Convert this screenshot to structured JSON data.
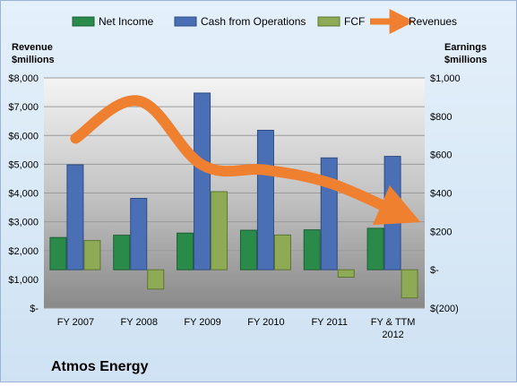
{
  "company": "Atmos Energy",
  "colors": {
    "net_income": "#2a8a4a",
    "cash_ops": "#4a6fb5",
    "fcf": "#8faa55",
    "revenues": "#ee8030"
  },
  "chart_data": {
    "type": "bar",
    "categories": [
      "FY 2007",
      "FY 2008",
      "FY 2009",
      "FY 2010",
      "FY 2011",
      "FY & TTM|2012"
    ],
    "series": [
      {
        "name": "Net Income",
        "axis": "right",
        "values": [
          168,
          180,
          191,
          206,
          208,
          216
        ]
      },
      {
        "name": "Cash from Operations",
        "axis": "right",
        "values": [
          547,
          372,
          921,
          727,
          583,
          591
        ]
      },
      {
        "name": "FCF",
        "axis": "right",
        "values": [
          152,
          -101,
          407,
          181,
          -39,
          -147
        ]
      },
      {
        "name": "Revenues",
        "axis": "left",
        "type": "line",
        "values": [
          5900,
          7200,
          4970,
          4800,
          4350,
          3400
        ]
      }
    ],
    "left_axis": {
      "label_line1": "Revenue",
      "label_line2": "$millions",
      "ylim": [
        0,
        8000
      ],
      "ticks": [
        "$-",
        "$1,000",
        "$2,000",
        "$3,000",
        "$4,000",
        "$5,000",
        "$6,000",
        "$7,000",
        "$8,000"
      ]
    },
    "right_axis": {
      "label_line1": "Earnings",
      "label_line2": "$millions",
      "ylim": [
        -200,
        1000
      ],
      "ticks": [
        "$(200)",
        "$-",
        "$200",
        "$400",
        "$600",
        "$800",
        "$1,000"
      ]
    },
    "legend_position": "top",
    "grid": true
  }
}
